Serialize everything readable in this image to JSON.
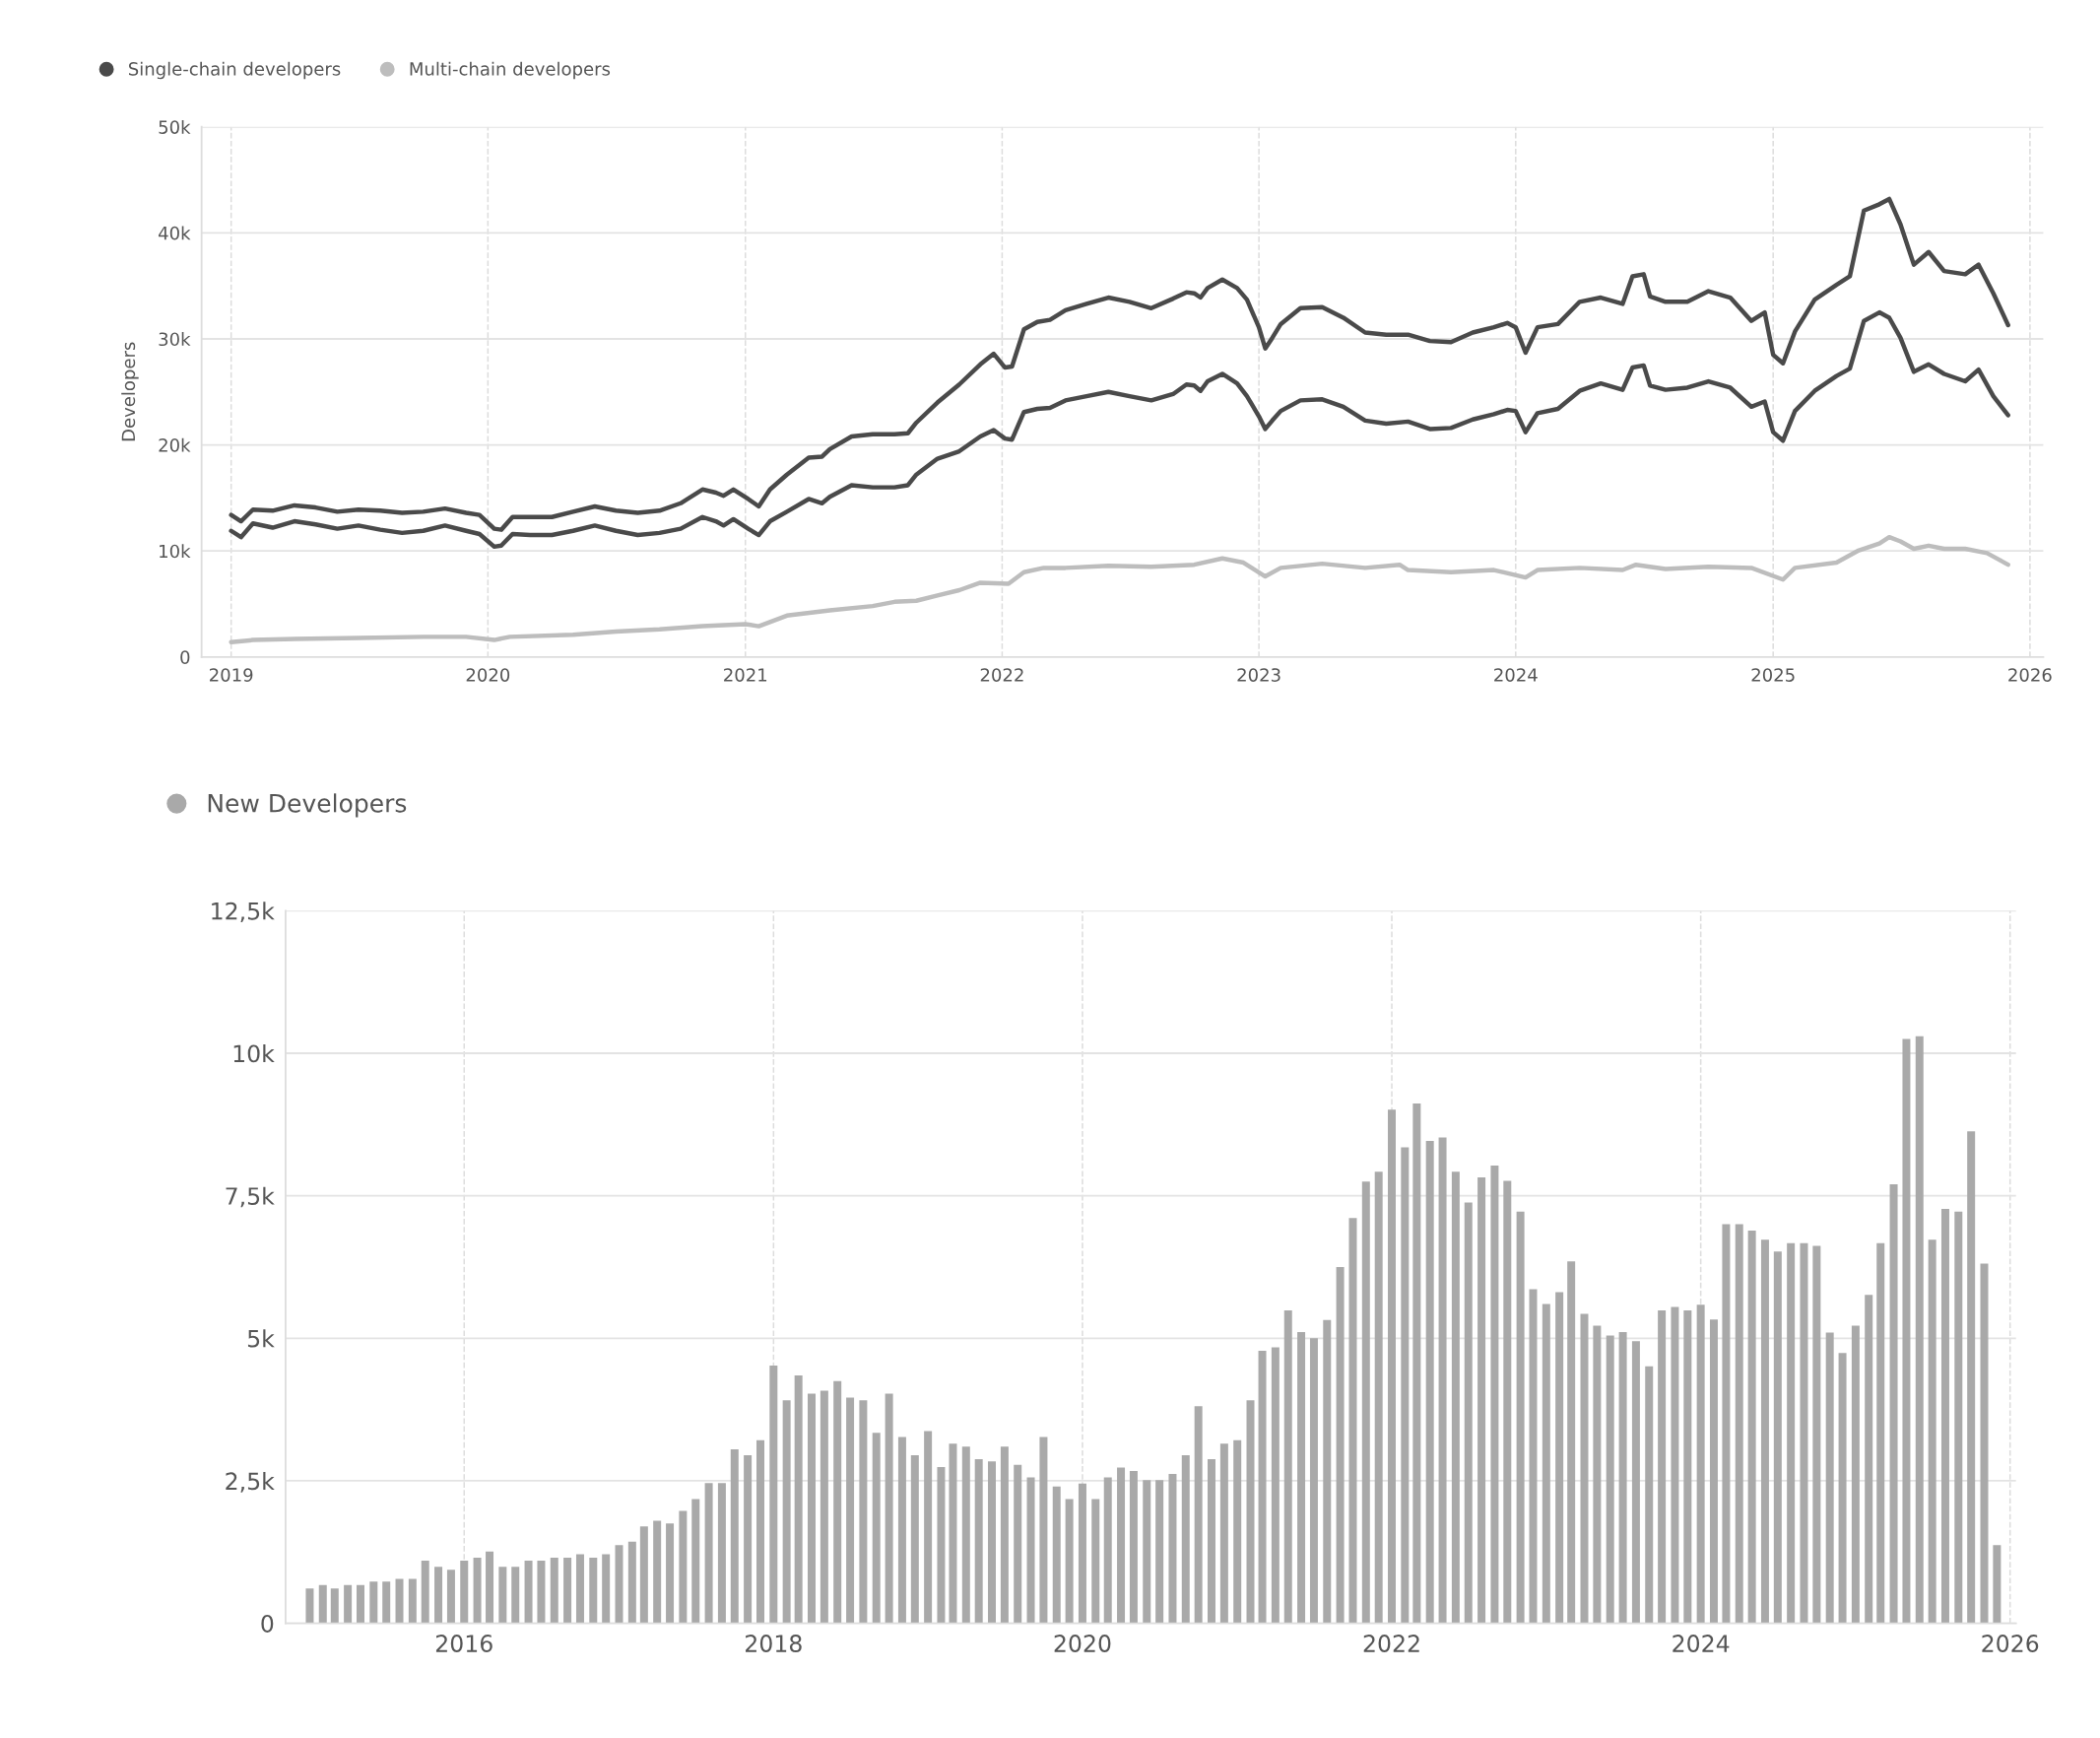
{
  "chart_data": [
    {
      "type": "line",
      "ylabel": "Developers",
      "legend": "top left",
      "grid": true,
      "xlim": [
        "2018-11-20",
        "2026-01-20"
      ],
      "xticks": [
        {
          "value": "2019-01-01",
          "label": "2019"
        },
        {
          "value": "2020-01-01",
          "label": "2020"
        },
        {
          "value": "2021-01-01",
          "label": "2021"
        },
        {
          "value": "2022-01-01",
          "label": "2022"
        },
        {
          "value": "2023-01-01",
          "label": "2023"
        },
        {
          "value": "2024-01-01",
          "label": "2024"
        },
        {
          "value": "2025-01-01",
          "label": "2025"
        },
        {
          "value": "2026-01-01",
          "label": "2026"
        }
      ],
      "ylim": [
        0,
        50000
      ],
      "yticks": [
        0,
        {
          "value": 10000,
          "label": "10k"
        },
        {
          "value": 20000,
          "label": "20k"
        },
        {
          "value": 30000,
          "label": "30k"
        },
        {
          "value": 40000,
          "label": "40k"
        },
        {
          "value": 50000,
          "label": "50k"
        }
      ],
      "x": [
        "2019-01-01",
        "2019-01-15",
        "2019-02-01",
        "2019-03-01",
        "2019-04-01",
        "2019-05-01",
        "2019-06-01",
        "2019-07-01",
        "2019-08-01",
        "2019-09-01",
        "2019-10-01",
        "2019-11-01",
        "2019-12-01",
        "2019-12-20",
        "2020-01-10",
        "2020-01-20",
        "2020-02-05",
        "2020-03-01",
        "2020-04-01",
        "2020-05-01",
        "2020-06-01",
        "2020-07-01",
        "2020-08-01",
        "2020-09-01",
        "2020-10-01",
        "2020-11-01",
        "2020-11-20",
        "2020-12-01",
        "2020-12-15",
        "2021-01-05",
        "2021-01-20",
        "2021-02-05",
        "2021-03-01",
        "2021-04-01",
        "2021-04-20",
        "2021-05-01",
        "2021-06-01",
        "2021-07-01",
        "2021-08-01",
        "2021-08-20",
        "2021-09-01",
        "2021-10-01",
        "2021-11-01",
        "2021-12-01",
        "2021-12-20",
        "2022-01-05",
        "2022-01-15",
        "2022-02-01",
        "2022-02-20",
        "2022-03-10",
        "2022-04-01",
        "2022-05-01",
        "2022-06-01",
        "2022-07-01",
        "2022-08-01",
        "2022-09-01",
        "2022-09-20",
        "2022-10-01",
        "2022-10-10",
        "2022-10-20",
        "2022-11-10",
        "2022-12-01",
        "2022-12-15",
        "2023-01-01",
        "2023-01-10",
        "2023-01-20",
        "2023-02-01",
        "2023-03-01",
        "2023-04-01",
        "2023-05-01",
        "2023-06-01",
        "2023-07-01",
        "2023-08-01",
        "2023-09-01",
        "2023-10-01",
        "2023-11-01",
        "2023-12-01",
        "2023-12-20",
        "2024-01-01",
        "2024-01-15",
        "2024-02-01",
        "2024-03-01",
        "2024-04-01",
        "2024-05-01",
        "2024-06-01",
        "2024-06-15",
        "2024-07-01",
        "2024-07-10",
        "2024-08-01",
        "2024-09-01",
        "2024-10-01",
        "2024-11-01",
        "2024-12-01",
        "2024-12-20",
        "2025-01-01",
        "2025-01-15",
        "2025-02-01",
        "2025-03-01",
        "2025-04-01",
        "2025-04-20",
        "2025-05-10",
        "2025-06-01",
        "2025-06-15",
        "2025-07-01",
        "2025-07-20",
        "2025-08-10",
        "2025-09-01",
        "2025-10-01",
        "2025-10-20",
        "2025-11-10",
        "2025-12-01"
      ],
      "series": [
        {
          "color": "#4a4a4a",
          "values": [
            13400,
            12800,
            13900,
            13800,
            14300,
            14100,
            13700,
            13900,
            13800,
            13600,
            13700,
            14000,
            13600,
            13400,
            12100,
            12000,
            13200,
            13200,
            13200,
            13700,
            14200,
            13800,
            13600,
            13800,
            14500,
            15800,
            15500,
            15200,
            15800,
            14900,
            14200,
            15800,
            17200,
            18800,
            18900,
            19600,
            20800,
            21000,
            21000,
            21100,
            22100,
            24000,
            25700,
            27600,
            28600,
            27300,
            27400,
            30900,
            31600,
            31800,
            32700,
            33300,
            33900,
            33500,
            32900,
            33800,
            34400,
            34300,
            33900,
            34800,
            35600,
            34800,
            33700,
            31100,
            29100,
            30100,
            31400,
            32900,
            33000,
            32000,
            30600,
            30400,
            30400,
            29800,
            29700,
            30600,
            31100,
            31500,
            31100,
            28700,
            31100,
            31400,
            33500,
            33900,
            33300,
            35900,
            36100,
            34000,
            33500,
            33500,
            34500,
            33900,
            31700,
            32500,
            28500,
            27700,
            30700,
            33700,
            35100,
            35900,
            42100,
            42700,
            43200,
            40800,
            37000,
            38200,
            36400,
            36100,
            37000,
            34300,
            31300
          ]
        },
        {
          "name": "Single-chain developers",
          "color": "#4a4a4a",
          "values": [
            11900,
            11300,
            12600,
            12200,
            12800,
            12500,
            12100,
            12400,
            12000,
            11700,
            11900,
            12400,
            11900,
            11600,
            10400,
            10500,
            11600,
            11500,
            11500,
            11900,
            12400,
            11900,
            11500,
            11700,
            12100,
            13200,
            12800,
            12400,
            13000,
            12100,
            11500,
            12800,
            13700,
            14900,
            14500,
            15100,
            16200,
            16000,
            16000,
            16200,
            17200,
            18700,
            19400,
            20800,
            21400,
            20600,
            20500,
            23100,
            23400,
            23500,
            24200,
            24600,
            25000,
            24600,
            24200,
            24800,
            25700,
            25600,
            25100,
            26000,
            26700,
            25800,
            24600,
            22700,
            21500,
            22300,
            23200,
            24200,
            24300,
            23600,
            22300,
            22000,
            22200,
            21500,
            21600,
            22400,
            22900,
            23300,
            23200,
            21200,
            23000,
            23400,
            25100,
            25800,
            25200,
            27300,
            27500,
            25600,
            25200,
            25400,
            26000,
            25400,
            23600,
            24100,
            21200,
            20400,
            23200,
            25100,
            26500,
            27200,
            31700,
            32500,
            32000,
            30100,
            26900,
            27600,
            26700,
            26000,
            27100,
            24600,
            22800
          ]
        },
        {
          "name": "Multi-chain developers",
          "color": "#bdbdbd",
          "x": [
            "2019-01-01",
            "2019-02-01",
            "2019-04-01",
            "2019-07-01",
            "2019-10-01",
            "2019-12-01",
            "2020-01-10",
            "2020-02-01",
            "2020-05-01",
            "2020-07-01",
            "2020-09-01",
            "2020-11-01",
            "2021-01-01",
            "2021-01-20",
            "2021-03-01",
            "2021-05-01",
            "2021-07-01",
            "2021-08-01",
            "2021-09-01",
            "2021-10-01",
            "2021-11-01",
            "2021-12-01",
            "2022-01-10",
            "2022-02-01",
            "2022-03-01",
            "2022-04-01",
            "2022-06-01",
            "2022-08-01",
            "2022-10-01",
            "2022-11-10",
            "2022-12-10",
            "2023-01-10",
            "2023-02-01",
            "2023-04-01",
            "2023-06-01",
            "2023-07-20",
            "2023-08-01",
            "2023-10-01",
            "2023-12-01",
            "2024-01-15",
            "2024-02-01",
            "2024-04-01",
            "2024-06-01",
            "2024-06-20",
            "2024-08-01",
            "2024-10-01",
            "2024-12-01",
            "2025-01-15",
            "2025-02-01",
            "2025-04-01",
            "2025-05-01",
            "2025-06-01",
            "2025-06-15",
            "2025-07-01",
            "2025-07-20",
            "2025-08-10",
            "2025-09-01",
            "2025-10-01",
            "2025-11-01",
            "2025-12-01"
          ],
          "values": [
            1400,
            1600,
            1700,
            1800,
            1900,
            1900,
            1600,
            1900,
            2100,
            2400,
            2600,
            2900,
            3100,
            2900,
            3900,
            4400,
            4800,
            5200,
            5300,
            5800,
            6300,
            7000,
            6900,
            8000,
            8400,
            8400,
            8600,
            8500,
            8700,
            9300,
            8900,
            7600,
            8400,
            8800,
            8400,
            8700,
            8200,
            8000,
            8200,
            7500,
            8200,
            8400,
            8200,
            8700,
            8300,
            8500,
            8400,
            7300,
            8400,
            8900,
            10000,
            10700,
            11300,
            10900,
            10200,
            10500,
            10200,
            10200,
            9800,
            8700
          ]
        }
      ]
    },
    {
      "type": "bar",
      "legend": "top left",
      "grid": true,
      "xlim": [
        "2014-11-05",
        "2026-01-15"
      ],
      "xticks": [
        {
          "value": "2016-01-01",
          "label": "2016"
        },
        {
          "value": "2018-01-01",
          "label": "2018"
        },
        {
          "value": "2020-01-01",
          "label": "2020"
        },
        {
          "value": "2022-01-01",
          "label": "2022"
        },
        {
          "value": "2024-01-01",
          "label": "2024"
        },
        {
          "value": "2026-01-01",
          "label": "2026"
        }
      ],
      "ylim": [
        0,
        12500
      ],
      "yticks": [
        0,
        {
          "value": 2500,
          "label": "2,5k"
        },
        {
          "value": 5000,
          "label": "5k"
        },
        {
          "value": 7500,
          "label": "7,5k"
        },
        {
          "value": 10000,
          "label": "10k"
        },
        {
          "value": 12500,
          "label": "12,5k"
        }
      ],
      "x": [
        "2015-01",
        "2015-02",
        "2015-03",
        "2015-04",
        "2015-05",
        "2015-06",
        "2015-07",
        "2015-08",
        "2015-09",
        "2015-10",
        "2015-11",
        "2015-12",
        "2016-01",
        "2016-02",
        "2016-03",
        "2016-04",
        "2016-05",
        "2016-06",
        "2016-07",
        "2016-08",
        "2016-09",
        "2016-10",
        "2016-11",
        "2016-12",
        "2017-01",
        "2017-02",
        "2017-03",
        "2017-04",
        "2017-05",
        "2017-06",
        "2017-07",
        "2017-08",
        "2017-09",
        "2017-10",
        "2017-11",
        "2017-12",
        "2018-01",
        "2018-02",
        "2018-03",
        "2018-04",
        "2018-05",
        "2018-06",
        "2018-07",
        "2018-08",
        "2018-09",
        "2018-10",
        "2018-11",
        "2018-12",
        "2019-01",
        "2019-02",
        "2019-03",
        "2019-04",
        "2019-05",
        "2019-06",
        "2019-07",
        "2019-08",
        "2019-09",
        "2019-10",
        "2019-11",
        "2019-12",
        "2020-01",
        "2020-02",
        "2020-03",
        "2020-04",
        "2020-05",
        "2020-06",
        "2020-07",
        "2020-08",
        "2020-09",
        "2020-10",
        "2020-11",
        "2020-12",
        "2021-01",
        "2021-02",
        "2021-03",
        "2021-04",
        "2021-05",
        "2021-06",
        "2021-07",
        "2021-08",
        "2021-09",
        "2021-10",
        "2021-11",
        "2021-12",
        "2022-01",
        "2022-02",
        "2022-03",
        "2022-04",
        "2022-05",
        "2022-06",
        "2022-07",
        "2022-08",
        "2022-09",
        "2022-10",
        "2022-11",
        "2022-12",
        "2023-01",
        "2023-02",
        "2023-03",
        "2023-04",
        "2023-05",
        "2023-06",
        "2023-07",
        "2023-08",
        "2023-09",
        "2023-10",
        "2023-11",
        "2023-12",
        "2024-01",
        "2024-02",
        "2024-03",
        "2024-04",
        "2024-05",
        "2024-06",
        "2024-07",
        "2024-08",
        "2024-09",
        "2024-10",
        "2024-11",
        "2024-12",
        "2025-01",
        "2025-02",
        "2025-03",
        "2025-04",
        "2025-05",
        "2025-06",
        "2025-07",
        "2025-08",
        "2025-09",
        "2025-10",
        "2025-11",
        "2025-12"
      ],
      "series": [
        {
          "name": "New Developers",
          "color": "#a9a9a9",
          "values": [
            610,
            670,
            610,
            670,
            670,
            730,
            730,
            780,
            780,
            1100,
            990,
            940,
            1100,
            1150,
            1260,
            990,
            990,
            1100,
            1100,
            1150,
            1150,
            1210,
            1150,
            1210,
            1370,
            1430,
            1700,
            1800,
            1750,
            1970,
            2180,
            2460,
            2460,
            3050,
            2950,
            3210,
            4520,
            3910,
            4350,
            4030,
            4080,
            4250,
            3960,
            3910,
            3340,
            4030,
            3270,
            2950,
            3370,
            2740,
            3150,
            3100,
            2880,
            2840,
            3100,
            2780,
            2560,
            3270,
            2400,
            2180,
            2450,
            2180,
            2560,
            2730,
            2670,
            2510,
            2510,
            2620,
            2950,
            3810,
            2880,
            3150,
            3210,
            3910,
            4780,
            4840,
            5490,
            5110,
            5000,
            5320,
            6250,
            7110,
            7750,
            7920,
            9010,
            8350,
            9120,
            8460,
            8520,
            7920,
            7380,
            7820,
            8030,
            7760,
            7220,
            5860,
            5600,
            5810,
            6350,
            5430,
            5220,
            5050,
            5110,
            4950,
            4510,
            5490,
            5550,
            5490,
            5590,
            5330,
            7000,
            7000,
            6890,
            6730,
            6520,
            6670,
            6670,
            6620,
            5100,
            4740,
            5220,
            5760,
            6670,
            7700,
            10250,
            10300,
            6730,
            7270,
            7220,
            8630,
            6310,
            1370
          ]
        }
      ]
    }
  ]
}
